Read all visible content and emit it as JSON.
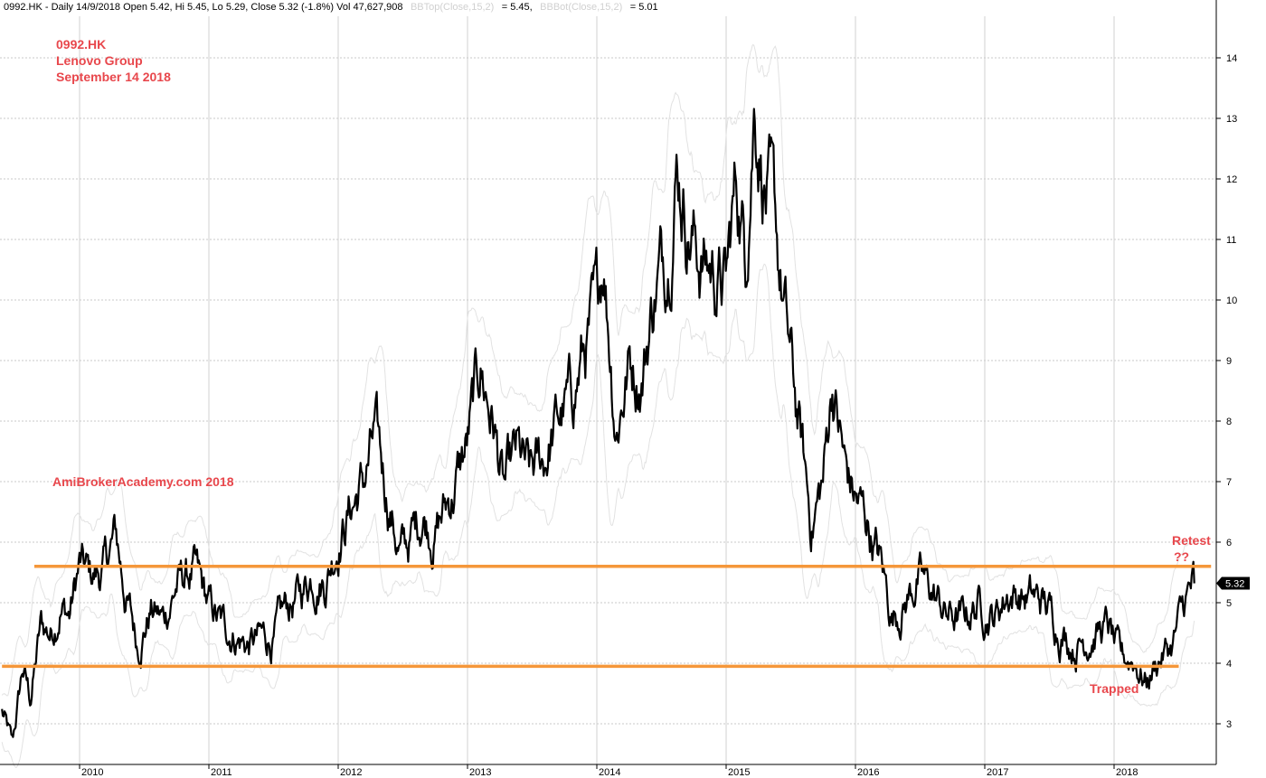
{
  "header": {
    "part1": "0992.HK - Daily 14/9/2018 Open 5.42, Hi 5.45, Lo 5.29, Close 5.32 (-1.8%) Vol 47,627,908",
    "bbtop_label": "BBTop(Close,15,2)",
    "bbtop_value": "= 5.45,",
    "bbbot_label": "BBBot(Close,15,2)",
    "bbbot_value": "= 5.01"
  },
  "annotations": {
    "ticker": "0992.HK",
    "company": "Lenovo Group",
    "date": "September 14 2018",
    "watermark": "AmiBrokerAcademy.com  2018",
    "retest": "Retest",
    "retest_q": "??",
    "trapped": "Trapped"
  },
  "last_price_label": "5.32",
  "colors": {
    "price": "#000000",
    "bands": "#e2e2e2",
    "levels": "#f5973a",
    "annotation": "#e8474c"
  },
  "chart_data": {
    "type": "line",
    "x_unit": "year",
    "xlim": [
      2009.4,
      2018.75
    ],
    "ylim": [
      2.5,
      14.5
    ],
    "x_ticks": [
      {
        "x": 2010,
        "label": "2010"
      },
      {
        "x": 2011,
        "label": "2011"
      },
      {
        "x": 2012,
        "label": "2012"
      },
      {
        "x": 2013,
        "label": "2013"
      },
      {
        "x": 2014,
        "label": "2014"
      },
      {
        "x": 2015,
        "label": "2015"
      },
      {
        "x": 2016,
        "label": "2016"
      },
      {
        "x": 2017,
        "label": "2017"
      },
      {
        "x": 2018,
        "label": "2018"
      }
    ],
    "y_ticks": [
      3,
      4,
      5,
      6,
      7,
      8,
      9,
      10,
      11,
      12,
      13,
      14
    ],
    "grid": true,
    "horizontal_levels": [
      {
        "y": 5.6,
        "x_start": 2009.65,
        "x_end": 2018.75
      },
      {
        "y": 3.95,
        "x_start": 2009.4,
        "x_end": 2018.5
      }
    ],
    "series": [
      {
        "points": [
          [
            2009.4,
            3.2
          ],
          [
            2009.48,
            2.6
          ],
          [
            2009.56,
            3.9
          ],
          [
            2009.62,
            3.4
          ],
          [
            2009.7,
            4.6
          ],
          [
            2009.78,
            4.5
          ],
          [
            2009.85,
            5.0
          ],
          [
            2009.92,
            4.8
          ],
          [
            2010.0,
            5.6
          ],
          [
            2010.08,
            5.4
          ],
          [
            2010.18,
            5.5
          ],
          [
            2010.28,
            6.1
          ],
          [
            2010.35,
            5.2
          ],
          [
            2010.45,
            4.3
          ],
          [
            2010.55,
            4.9
          ],
          [
            2010.65,
            4.7
          ],
          [
            2010.75,
            5.3
          ],
          [
            2010.88,
            5.5
          ],
          [
            2011.0,
            4.9
          ],
          [
            2011.1,
            4.6
          ],
          [
            2011.2,
            4.5
          ],
          [
            2011.3,
            4.3
          ],
          [
            2011.4,
            4.4
          ],
          [
            2011.5,
            4.4
          ],
          [
            2011.6,
            4.9
          ],
          [
            2011.7,
            5.1
          ],
          [
            2011.8,
            5.5
          ],
          [
            2011.9,
            5.4
          ],
          [
            2012.0,
            6.1
          ],
          [
            2012.1,
            6.6
          ],
          [
            2012.2,
            7.0
          ],
          [
            2012.28,
            7.7
          ],
          [
            2012.38,
            6.8
          ],
          [
            2012.48,
            5.8
          ],
          [
            2012.55,
            6.0
          ],
          [
            2012.65,
            6.5
          ],
          [
            2012.75,
            6.2
          ],
          [
            2012.88,
            6.8
          ],
          [
            2013.0,
            7.6
          ],
          [
            2013.1,
            8.9
          ],
          [
            2013.2,
            8.0
          ],
          [
            2013.28,
            6.8
          ],
          [
            2013.38,
            7.4
          ],
          [
            2013.48,
            7.0
          ],
          [
            2013.58,
            7.3
          ],
          [
            2013.7,
            8.0
          ],
          [
            2013.8,
            8.3
          ],
          [
            2013.88,
            9.0
          ],
          [
            2014.0,
            9.7
          ],
          [
            2014.05,
            10.9
          ],
          [
            2014.15,
            8.0
          ],
          [
            2014.25,
            9.0
          ],
          [
            2014.35,
            8.8
          ],
          [
            2014.45,
            10.2
          ],
          [
            2014.55,
            10.9
          ],
          [
            2014.62,
            12.4
          ],
          [
            2014.7,
            11.4
          ],
          [
            2014.8,
            10.7
          ],
          [
            2014.9,
            10.5
          ],
          [
            2015.0,
            10.2
          ],
          [
            2015.08,
            12.0
          ],
          [
            2015.15,
            10.8
          ],
          [
            2015.22,
            13.5
          ],
          [
            2015.3,
            12.0
          ],
          [
            2015.38,
            11.0
          ],
          [
            2015.48,
            9.2
          ],
          [
            2015.58,
            7.6
          ],
          [
            2015.66,
            6.3
          ],
          [
            2015.75,
            7.0
          ],
          [
            2015.82,
            8.7
          ],
          [
            2015.92,
            7.2
          ],
          [
            2016.0,
            6.7
          ],
          [
            2016.1,
            6.3
          ],
          [
            2016.2,
            5.6
          ],
          [
            2016.28,
            4.8
          ],
          [
            2016.38,
            5.0
          ],
          [
            2016.48,
            5.4
          ],
          [
            2016.58,
            5.2
          ],
          [
            2016.7,
            4.8
          ],
          [
            2016.82,
            4.7
          ],
          [
            2016.95,
            5.0
          ],
          [
            2017.08,
            4.8
          ],
          [
            2017.18,
            5.2
          ],
          [
            2017.3,
            5.1
          ],
          [
            2017.45,
            5.0
          ],
          [
            2017.58,
            4.6
          ],
          [
            2017.7,
            4.3
          ],
          [
            2017.82,
            4.5
          ],
          [
            2017.95,
            4.6
          ],
          [
            2018.05,
            4.0
          ],
          [
            2018.15,
            4.1
          ],
          [
            2018.25,
            3.7
          ],
          [
            2018.35,
            4.1
          ],
          [
            2018.45,
            4.3
          ],
          [
            2018.55,
            5.0
          ],
          [
            2018.62,
            5.32
          ]
        ]
      }
    ]
  }
}
